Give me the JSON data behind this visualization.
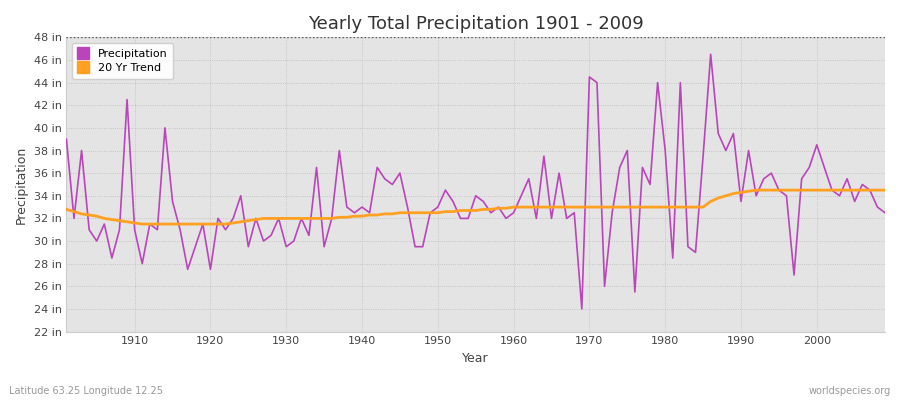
{
  "title": "Yearly Total Precipitation 1901 - 2009",
  "xlabel": "Year",
  "ylabel": "Precipitation",
  "subtitle_left": "Latitude 63.25 Longitude 12.25",
  "subtitle_right": "worldspecies.org",
  "bg_color": "#ffffff",
  "plot_bg_color": "#e4e4e4",
  "precip_color": "#bb44bb",
  "trend_color": "#ffa020",
  "years": [
    1901,
    1902,
    1903,
    1904,
    1905,
    1906,
    1907,
    1908,
    1909,
    1910,
    1911,
    1912,
    1913,
    1914,
    1915,
    1916,
    1917,
    1918,
    1919,
    1920,
    1921,
    1922,
    1923,
    1924,
    1925,
    1926,
    1927,
    1928,
    1929,
    1930,
    1931,
    1932,
    1933,
    1934,
    1935,
    1936,
    1937,
    1938,
    1939,
    1940,
    1941,
    1942,
    1943,
    1944,
    1945,
    1946,
    1947,
    1948,
    1949,
    1950,
    1951,
    1952,
    1953,
    1954,
    1955,
    1956,
    1957,
    1958,
    1959,
    1960,
    1961,
    1962,
    1963,
    1964,
    1965,
    1966,
    1967,
    1968,
    1969,
    1970,
    1971,
    1972,
    1973,
    1974,
    1975,
    1976,
    1977,
    1978,
    1979,
    1980,
    1981,
    1982,
    1983,
    1984,
    1985,
    1986,
    1987,
    1988,
    1989,
    1990,
    1991,
    1992,
    1993,
    1994,
    1995,
    1996,
    1997,
    1998,
    1999,
    2000,
    2001,
    2002,
    2003,
    2004,
    2005,
    2006,
    2007,
    2008,
    2009
  ],
  "precip": [
    39.0,
    32.0,
    38.0,
    31.0,
    30.0,
    31.5,
    28.5,
    31.0,
    42.5,
    31.0,
    28.0,
    31.5,
    31.0,
    40.0,
    33.5,
    31.0,
    27.5,
    29.5,
    31.5,
    27.5,
    32.0,
    31.0,
    32.0,
    34.0,
    29.5,
    32.0,
    30.0,
    30.5,
    32.0,
    29.5,
    30.0,
    32.0,
    30.5,
    36.5,
    29.5,
    32.0,
    38.0,
    33.0,
    32.5,
    33.0,
    32.5,
    36.5,
    35.5,
    35.0,
    36.0,
    33.0,
    29.5,
    29.5,
    32.5,
    33.0,
    34.5,
    33.5,
    32.0,
    32.0,
    34.0,
    33.5,
    32.5,
    33.0,
    32.0,
    32.5,
    34.0,
    35.5,
    32.0,
    37.5,
    32.0,
    36.0,
    32.0,
    32.5,
    24.0,
    44.5,
    44.0,
    26.0,
    32.5,
    36.5,
    38.0,
    25.5,
    36.5,
    35.0,
    44.0,
    38.0,
    28.5,
    44.0,
    29.5,
    29.0,
    37.5,
    46.5,
    39.5,
    38.0,
    39.5,
    33.5,
    38.0,
    34.0,
    35.5,
    36.0,
    34.5,
    34.0,
    27.0,
    35.5,
    36.5,
    38.5,
    36.5,
    34.5,
    34.0,
    35.5,
    33.5,
    35.0,
    34.5,
    33.0,
    32.5
  ],
  "trend": [
    32.8,
    32.6,
    32.4,
    32.3,
    32.2,
    32.0,
    31.9,
    31.8,
    31.7,
    31.6,
    31.5,
    31.5,
    31.5,
    31.5,
    31.5,
    31.5,
    31.5,
    31.5,
    31.5,
    31.5,
    31.5,
    31.5,
    31.6,
    31.7,
    31.8,
    31.9,
    32.0,
    32.0,
    32.0,
    32.0,
    32.0,
    32.0,
    32.0,
    32.0,
    32.0,
    32.0,
    32.1,
    32.1,
    32.2,
    32.2,
    32.3,
    32.3,
    32.4,
    32.4,
    32.5,
    32.5,
    32.5,
    32.5,
    32.5,
    32.5,
    32.6,
    32.6,
    32.7,
    32.7,
    32.7,
    32.8,
    32.8,
    32.9,
    32.9,
    33.0,
    33.0,
    33.0,
    33.0,
    33.0,
    33.0,
    33.0,
    33.0,
    33.0,
    33.0,
    33.0,
    33.0,
    33.0,
    33.0,
    33.0,
    33.0,
    33.0,
    33.0,
    33.0,
    33.0,
    33.0,
    33.0,
    33.0,
    33.0,
    33.0,
    33.0,
    33.5,
    33.8,
    34.0,
    34.2,
    34.3,
    34.4,
    34.5,
    34.5,
    34.5,
    34.5,
    34.5,
    34.5,
    34.5,
    34.5,
    34.5,
    34.5,
    34.5,
    34.5,
    34.5,
    34.5,
    34.5,
    34.5,
    34.5,
    34.5
  ],
  "ylim": [
    22,
    48
  ],
  "yticks": [
    22,
    24,
    26,
    28,
    30,
    32,
    34,
    36,
    38,
    40,
    42,
    44,
    46,
    48
  ],
  "xlim": [
    1901,
    2009
  ],
  "xticks": [
    1910,
    1920,
    1930,
    1940,
    1950,
    1960,
    1970,
    1980,
    1990,
    2000
  ]
}
